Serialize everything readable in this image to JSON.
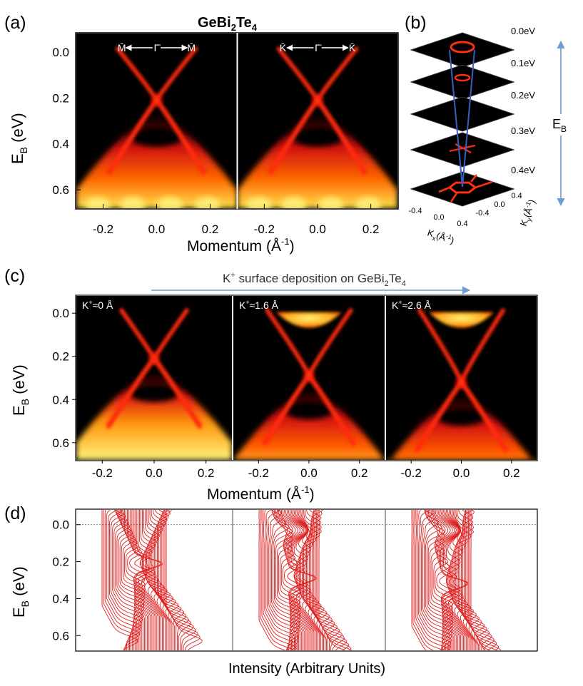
{
  "figure": {
    "panel_labels": [
      "(a)",
      "(b)",
      "(c)",
      "(d)"
    ],
    "title_a_base": "GeBi",
    "title_a_sub1": "2",
    "title_a_mid": "Te",
    "title_a_sub2": "4",
    "title_c_text": "K",
    "title_c_sup": "+",
    "title_c_rest": " surface deposition on GeBi",
    "title_c_sub1": "2",
    "title_c_mid": "Te",
    "title_c_sub2": "4",
    "x_label_base": "Momentum",
    "x_label_unit": "(Å",
    "x_label_sup": "-1",
    "x_label_close": ")",
    "y_label_base": "E",
    "y_label_sub": "B",
    "y_label_unit": " (eV)",
    "d_xlabel": "Intensity (Arbitrary Units)",
    "b_axis_label": "E",
    "b_axis_sub": "B",
    "colors": {
      "dark": "#000000",
      "red": "#d01010",
      "orange": "#ff6a00",
      "yellow": "#fff27a",
      "curve": "#e02020",
      "arrow": "#6e9bd0"
    }
  },
  "chart_data": [
    {
      "type": "heatmap",
      "panel": "(a)",
      "subpanels": [
        {
          "left_point": "M̄",
          "center_point": "Γ̄",
          "right_point": "M̄"
        },
        {
          "left_point": "K̄",
          "center_point": "Γ̄",
          "right_point": "K̄"
        }
      ],
      "x_ticks": [
        "-0.2",
        "0.0",
        "0.2"
      ],
      "y_ticks": [
        "0.0",
        "0.2",
        "0.4",
        "0.6"
      ],
      "xlim": [
        -0.3,
        0.3
      ],
      "ylim": [
        0.68,
        -0.08
      ],
      "dirac_point_eV": 0.21
    },
    {
      "type": "heatmap",
      "panel": "(b)",
      "slice_energies": [
        "0.0eV",
        "0.1eV",
        "0.2eV",
        "0.3eV",
        "0.4eV"
      ],
      "kx_ticks": [
        "-0.4",
        "0.0",
        "0.4"
      ],
      "ky_ticks": [
        "0.4",
        "0.0",
        "-0.4"
      ],
      "kx_label": "K",
      "kx_sub": "x",
      "kx_unit": "(Å",
      "kx_sup": "-1",
      "kx_close": ")",
      "ky_label": "K",
      "ky_sub": "y",
      "ky_unit": "(Å",
      "ky_sup": "-1",
      "ky_close": ")"
    },
    {
      "type": "heatmap",
      "panel": "(c)",
      "subpanels": [
        {
          "label_base": "K",
          "label_sup": "+",
          "label_rest": "≈0 Å",
          "dirac_point_eV": 0.21
        },
        {
          "label_base": "K",
          "label_sup": "+",
          "label_rest": "≈1.6 Å",
          "dirac_point_eV": 0.29
        },
        {
          "label_base": "K",
          "label_sup": "+",
          "label_rest": "≈2.6 Å",
          "dirac_point_eV": 0.32
        }
      ],
      "x_ticks": [
        "-0.2",
        "0.0",
        "0.2"
      ],
      "y_ticks": [
        "0.0",
        "0.2",
        "0.4",
        "0.6"
      ],
      "xlim": [
        -0.3,
        0.3
      ],
      "ylim": [
        0.68,
        -0.08
      ]
    },
    {
      "type": "line",
      "panel": "(d)",
      "series_count": 3,
      "y_ticks": [
        "0.0",
        "0.2",
        "0.4",
        "0.6"
      ],
      "ylim": [
        0.68,
        -0.08
      ],
      "fermi_level_eV": 0.0,
      "dirac_points_eV": [
        0.21,
        0.29,
        0.32
      ]
    }
  ]
}
